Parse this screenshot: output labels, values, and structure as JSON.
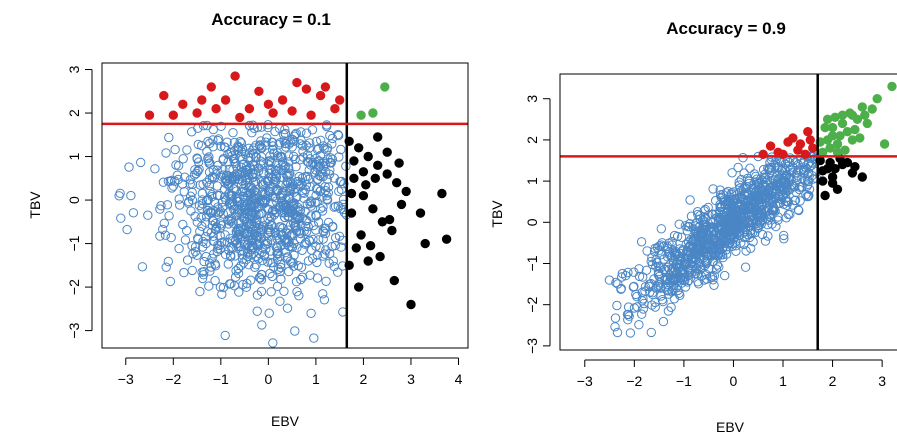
{
  "chart_data": [
    {
      "type": "scatter",
      "title": "Accuracy = 0.1",
      "xlabel": "EBV",
      "ylabel": "TBV",
      "xlim": [
        -3.5,
        4.2
      ],
      "ylim": [
        -3.4,
        3.15
      ],
      "xticks": [
        -3,
        -2,
        -1,
        0,
        1,
        2,
        3,
        4
      ],
      "yticks": [
        -3,
        -2,
        -1,
        0,
        1,
        2,
        3
      ],
      "xtick_labels": [
        "−3",
        "−2",
        "−1",
        "0",
        "1",
        "2",
        "3",
        "4"
      ],
      "ytick_labels": [
        "−3",
        "−2",
        "−1",
        "0",
        "1",
        "2",
        "3"
      ],
      "grid": false,
      "vline_x": 1.65,
      "hline_y": 1.75,
      "accuracy": 0.1,
      "background_count": 1100,
      "seed": 7,
      "colors": {
        "background": "#4a86c5",
        "red": "#d7191c",
        "green": "#4daf4a",
        "black": "#000000",
        "vline": "#000000",
        "hline": "#d7191c"
      },
      "highlighted": {
        "red": [
          [
            -2.2,
            2.4
          ],
          [
            -2.0,
            1.95
          ],
          [
            -1.8,
            2.2
          ],
          [
            -1.5,
            2.0
          ],
          [
            -1.2,
            2.6
          ],
          [
            -0.9,
            2.3
          ],
          [
            -0.7,
            2.85
          ],
          [
            -0.4,
            2.1
          ],
          [
            -0.2,
            2.5
          ],
          [
            0.1,
            2.0
          ],
          [
            0.3,
            2.3
          ],
          [
            0.6,
            2.7
          ],
          [
            0.9,
            1.95
          ],
          [
            1.1,
            2.4
          ],
          [
            1.4,
            2.1
          ],
          [
            -1.4,
            2.3
          ],
          [
            0.0,
            2.2
          ],
          [
            0.8,
            2.55
          ],
          [
            1.2,
            2.6
          ],
          [
            -0.6,
            1.9
          ],
          [
            -2.5,
            1.95
          ],
          [
            -1.1,
            2.1
          ],
          [
            0.5,
            2.05
          ],
          [
            1.5,
            2.3
          ]
        ],
        "green": [
          [
            1.95,
            1.95
          ],
          [
            2.2,
            2.0
          ],
          [
            2.45,
            2.6
          ]
        ],
        "black": [
          [
            1.7,
            1.35
          ],
          [
            1.9,
            1.2
          ],
          [
            2.1,
            1.0
          ],
          [
            2.3,
            0.8
          ],
          [
            2.5,
            0.6
          ],
          [
            2.7,
            0.4
          ],
          [
            2.9,
            0.2
          ],
          [
            1.8,
            0.5
          ],
          [
            2.0,
            0.1
          ],
          [
            2.2,
            -0.2
          ],
          [
            2.4,
            -0.5
          ],
          [
            2.6,
            -0.7
          ],
          [
            1.75,
            -0.3
          ],
          [
            1.95,
            -0.8
          ],
          [
            2.15,
            -1.05
          ],
          [
            2.35,
            -1.3
          ],
          [
            3.65,
            0.15
          ],
          [
            3.75,
            -0.9
          ],
          [
            3.0,
            -2.4
          ],
          [
            2.65,
            -1.85
          ],
          [
            1.9,
            -2.0
          ],
          [
            1.7,
            -1.5
          ],
          [
            2.3,
            1.45
          ],
          [
            2.0,
            0.65
          ],
          [
            2.8,
            -0.1
          ],
          [
            3.2,
            -0.3
          ],
          [
            2.5,
            1.1
          ],
          [
            1.8,
            0.9
          ],
          [
            2.1,
            -1.4
          ],
          [
            3.3,
            -1.0
          ],
          [
            1.85,
            -1.1
          ],
          [
            2.05,
            0.35
          ],
          [
            2.55,
            -0.45
          ],
          [
            2.75,
            0.85
          ],
          [
            2.25,
            0.5
          ],
          [
            1.75,
            0.15
          ]
        ]
      }
    },
    {
      "type": "scatter",
      "title": "Accuracy = 0.9",
      "xlabel": "EBV",
      "ylabel": "TBV",
      "xlim": [
        -3.5,
        3.3
      ],
      "ylim": [
        -3.1,
        3.6
      ],
      "xticks": [
        -3,
        -2,
        -1,
        0,
        1,
        2,
        3
      ],
      "yticks": [
        -3,
        -2,
        -1,
        0,
        1,
        2,
        3
      ],
      "xtick_labels": [
        "−3",
        "−2",
        "−1",
        "0",
        "1",
        "2",
        "3"
      ],
      "ytick_labels": [
        "−3",
        "−2",
        "−1",
        "0",
        "1",
        "2",
        "3"
      ],
      "grid": false,
      "vline_x": 1.7,
      "hline_y": 1.6,
      "accuracy": 0.9,
      "background_count": 1100,
      "seed": 11,
      "colors": {
        "background": "#4a86c5",
        "red": "#d7191c",
        "green": "#4daf4a",
        "black": "#000000",
        "vline": "#000000",
        "hline": "#d7191c"
      },
      "highlighted": {
        "red": [
          [
            0.9,
            1.7
          ],
          [
            1.1,
            1.95
          ],
          [
            1.3,
            1.75
          ],
          [
            1.5,
            2.2
          ],
          [
            1.6,
            1.8
          ],
          [
            0.75,
            1.85
          ],
          [
            1.2,
            2.05
          ],
          [
            1.45,
            1.65
          ],
          [
            1.0,
            1.65
          ],
          [
            1.55,
            2.0
          ],
          [
            1.35,
            1.9
          ],
          [
            0.6,
            1.65
          ]
        ],
        "green": [
          [
            1.8,
            1.7
          ],
          [
            1.9,
            2.0
          ],
          [
            2.0,
            2.3
          ],
          [
            2.1,
            1.9
          ],
          [
            2.2,
            2.4
          ],
          [
            2.3,
            2.2
          ],
          [
            2.4,
            2.6
          ],
          [
            2.5,
            2.5
          ],
          [
            2.6,
            2.8
          ],
          [
            2.7,
            2.4
          ],
          [
            2.8,
            2.75
          ],
          [
            2.9,
            3.0
          ],
          [
            3.2,
            3.3
          ],
          [
            3.05,
            1.9
          ],
          [
            1.85,
            2.3
          ],
          [
            1.95,
            1.8
          ],
          [
            2.05,
            2.55
          ],
          [
            2.15,
            2.1
          ],
          [
            2.25,
            1.75
          ],
          [
            2.35,
            2.65
          ],
          [
            2.45,
            2.25
          ],
          [
            2.55,
            2.05
          ],
          [
            2.65,
            2.6
          ],
          [
            1.75,
            1.95
          ],
          [
            2.0,
            2.1
          ],
          [
            2.2,
            2.6
          ],
          [
            2.4,
            2.0
          ],
          [
            1.9,
            2.5
          ],
          [
            2.1,
            1.7
          ]
        ],
        "black": [
          [
            1.75,
            1.5
          ],
          [
            1.9,
            1.3
          ],
          [
            2.0,
            1.1
          ],
          [
            2.2,
            1.4
          ],
          [
            2.4,
            1.2
          ],
          [
            1.8,
            1.0
          ],
          [
            2.1,
            0.8
          ],
          [
            2.6,
            1.1
          ],
          [
            1.85,
            0.65
          ],
          [
            2.3,
            1.45
          ],
          [
            1.95,
            1.45
          ],
          [
            2.0,
            0.95
          ],
          [
            2.15,
            1.55
          ],
          [
            1.8,
            1.25
          ],
          [
            2.45,
            1.35
          ],
          [
            2.05,
            1.3
          ]
        ]
      }
    }
  ]
}
